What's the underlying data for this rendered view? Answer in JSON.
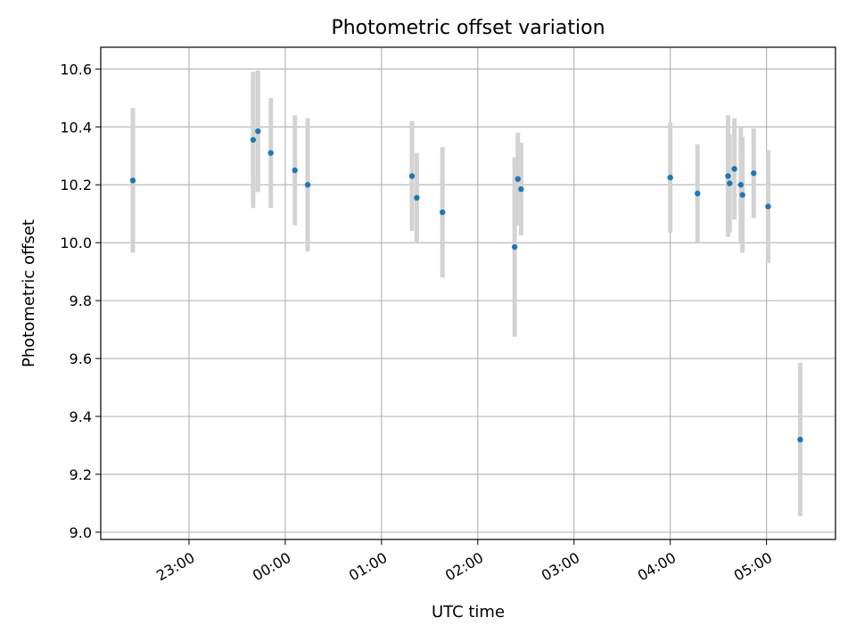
{
  "chart_data": {
    "type": "scatter",
    "title": "Photometric offset variation",
    "xlabel": "UTC time",
    "ylabel": "Photometric offset",
    "x_axis_kind": "time",
    "x_ticks": [
      "23:00",
      "00:00",
      "01:00",
      "02:00",
      "03:00",
      "04:00",
      "05:00"
    ],
    "y_ticks": [
      "9.0",
      "9.2",
      "9.4",
      "9.6",
      "9.8",
      "10.0",
      "10.2",
      "10.4",
      "10.6"
    ],
    "xlim": [
      "22:05",
      "05:43"
    ],
    "ylim": [
      8.975,
      10.675
    ],
    "grid": true,
    "marker_color": "#1f77b4",
    "errorbar_color": "#d3d3d3",
    "points": [
      {
        "time": "22:25",
        "y": 10.215,
        "err": 0.25
      },
      {
        "time": "23:40",
        "y": 10.355,
        "err": 0.235
      },
      {
        "time": "23:43",
        "y": 10.385,
        "err": 0.21
      },
      {
        "time": "23:51",
        "y": 10.31,
        "err": 0.19
      },
      {
        "time": "00:06",
        "y": 10.25,
        "err": 0.19
      },
      {
        "time": "00:14",
        "y": 10.2,
        "err": 0.23
      },
      {
        "time": "01:19",
        "y": 10.23,
        "err": 0.19
      },
      {
        "time": "01:22",
        "y": 10.155,
        "err": 0.155
      },
      {
        "time": "01:38",
        "y": 10.105,
        "err": 0.225
      },
      {
        "time": "02:23",
        "y": 9.985,
        "err": 0.31
      },
      {
        "time": "02:25",
        "y": 10.22,
        "err": 0.16
      },
      {
        "time": "02:27",
        "y": 10.185,
        "err": 0.16
      },
      {
        "time": "04:00",
        "y": 10.225,
        "err": 0.19
      },
      {
        "time": "04:17",
        "y": 10.17,
        "err": 0.17
      },
      {
        "time": "04:36",
        "y": 10.23,
        "err": 0.21
      },
      {
        "time": "04:37",
        "y": 10.205,
        "err": 0.17
      },
      {
        "time": "04:40",
        "y": 10.255,
        "err": 0.175
      },
      {
        "time": "04:44",
        "y": 10.2,
        "err": 0.2
      },
      {
        "time": "04:45",
        "y": 10.165,
        "err": 0.2
      },
      {
        "time": "04:52",
        "y": 10.24,
        "err": 0.155
      },
      {
        "time": "05:01",
        "y": 10.125,
        "err": 0.195
      },
      {
        "time": "05:21",
        "y": 9.32,
        "err": 0.265
      }
    ]
  }
}
